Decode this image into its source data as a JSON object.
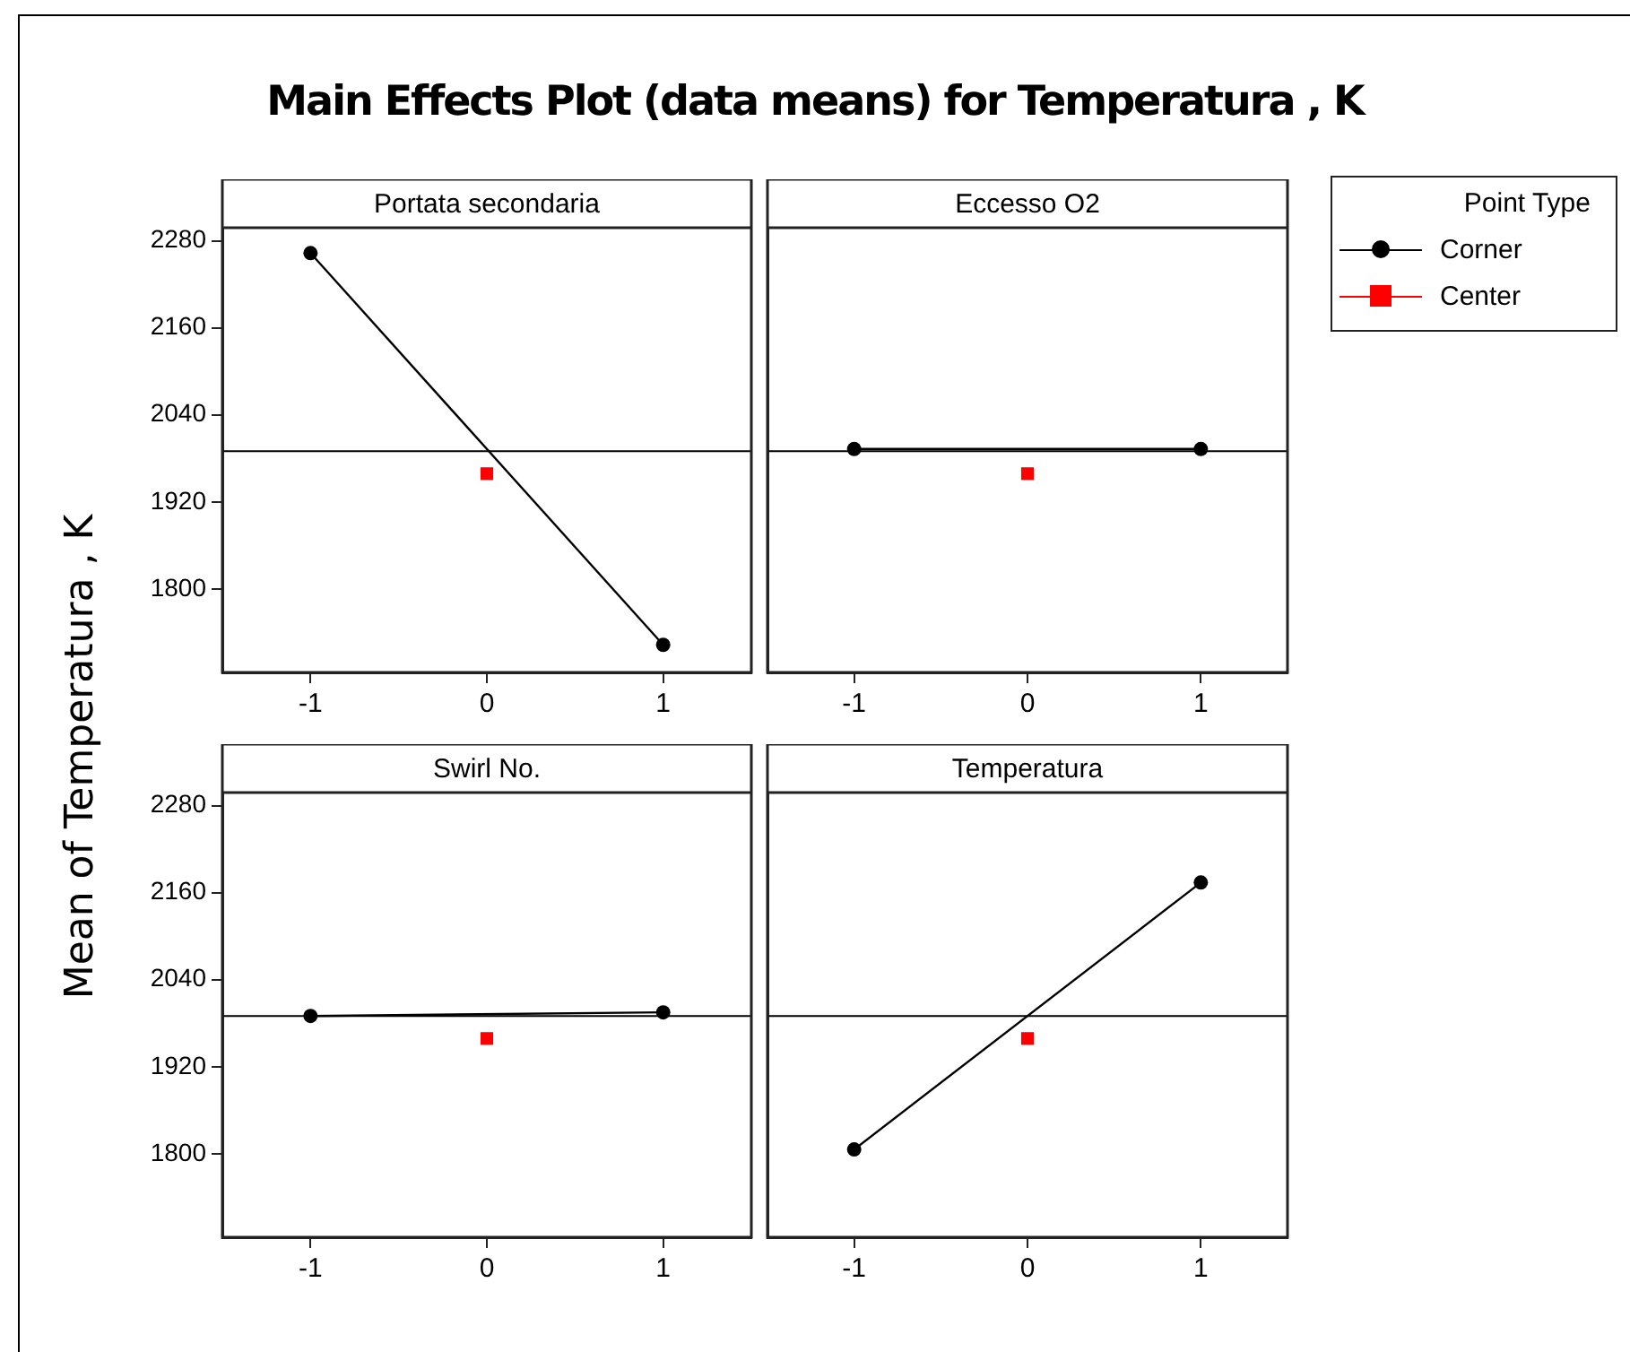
{
  "chart_data": [
    {
      "type": "line",
      "title": "Portata secondaria",
      "annotations": [
        "Main Effects Plot (data means) for Temperatura , K"
      ],
      "ylabel": "Mean of Temperatura , K",
      "xlim": [
        -1.5,
        1.5
      ],
      "xticks": [
        -1,
        0,
        1
      ],
      "ylim": [
        1685,
        2298
      ],
      "yticks": [
        1800,
        1920,
        2040,
        2160,
        2280
      ],
      "ref_lines": [
        {
          "axis": "y",
          "value": 1990,
          "color": "#000000"
        }
      ],
      "series": [
        {
          "type": "line",
          "x": [
            -1,
            1
          ],
          "values": [
            2263,
            1723
          ],
          "color": "#000000",
          "marker": "circle"
        },
        {
          "type": "scatter",
          "x": [
            0
          ],
          "values": [
            1959
          ],
          "color": "#ff0000",
          "marker": "square"
        }
      ]
    },
    {
      "type": "line",
      "title": "Eccesso O2",
      "legend": "right",
      "legend_title": "Point Type",
      "tick_labels": "x",
      "xlim": [
        -1.5,
        1.5
      ],
      "xticks": [
        -1,
        0,
        1
      ],
      "ylim": [
        1685,
        2298
      ],
      "yticks": [
        1800,
        1920,
        2040,
        2160,
        2280
      ],
      "ref_lines": [
        {
          "axis": "y",
          "value": 1990,
          "color": "#000000"
        }
      ],
      "series": [
        {
          "name": "Corner",
          "type": "line",
          "x": [
            -1,
            1
          ],
          "values": [
            1993,
            1993
          ],
          "color": "#000000",
          "marker": "circle"
        },
        {
          "name": "Center",
          "type": "scatter",
          "x": [
            0
          ],
          "values": [
            1959
          ],
          "color": "#ff0000",
          "marker": "square"
        }
      ]
    },
    {
      "type": "line",
      "title": "Swirl No.",
      "xlim": [
        -1.5,
        1.5
      ],
      "xticks": [
        -1,
        0,
        1
      ],
      "ylim": [
        1685,
        2298
      ],
      "yticks": [
        1800,
        1920,
        2040,
        2160,
        2280
      ],
      "ref_lines": [
        {
          "axis": "y",
          "value": 1990,
          "color": "#000000"
        }
      ],
      "series": [
        {
          "type": "line",
          "x": [
            -1,
            1
          ],
          "values": [
            1990,
            1995
          ],
          "color": "#000000",
          "marker": "circle"
        },
        {
          "type": "scatter",
          "x": [
            0
          ],
          "values": [
            1959
          ],
          "color": "#ff0000",
          "marker": "square"
        }
      ]
    },
    {
      "type": "line",
      "title": "Temperatura",
      "tick_labels": "x",
      "xlim": [
        -1.5,
        1.5
      ],
      "xticks": [
        -1,
        0,
        1
      ],
      "ylim": [
        1685,
        2298
      ],
      "yticks": [
        1800,
        1920,
        2040,
        2160,
        2280
      ],
      "ref_lines": [
        {
          "axis": "y",
          "value": 1990,
          "color": "#000000"
        }
      ],
      "series": [
        {
          "type": "line",
          "x": [
            -1,
            1
          ],
          "values": [
            1806,
            2174
          ],
          "color": "#000000",
          "marker": "circle"
        },
        {
          "type": "scatter",
          "x": [
            0
          ],
          "values": [
            1959
          ],
          "color": "#ff0000",
          "marker": "square"
        }
      ]
    }
  ]
}
